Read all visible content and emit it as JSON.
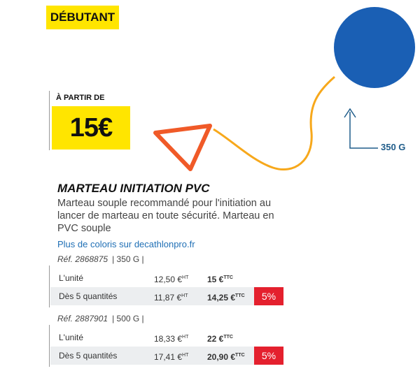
{
  "badge": "DÉBUTANT",
  "price": {
    "label": "À PARTIR DE",
    "amount": "15€"
  },
  "illustration": {
    "weight_label": "350 G"
  },
  "product": {
    "title": "MARTEAU INITIATION PVC",
    "description": "Marteau souple recommandé pour l'initiation au lancer de marteau en toute sécurité. Marteau en PVC souple",
    "link": "Plus de coloris sur decathlonpro.fr"
  },
  "variants": [
    {
      "ref": "Réf. 2868875",
      "spec": "| 350 G |",
      "rows": [
        {
          "label": "L'unité",
          "ht": "12,50 €",
          "ht_unit": "HT",
          "ttc": "15 €",
          "ttc_unit": "TTC"
        },
        {
          "label": "Dès 5 quantités",
          "ht": "11,87 €",
          "ht_unit": "HT",
          "ttc": "14,25 €",
          "ttc_unit": "TTC",
          "discount": "5%"
        }
      ]
    },
    {
      "ref": "Réf. 2887901",
      "spec": "| 500 G |",
      "rows": [
        {
          "label": "L'unité",
          "ht": "18,33 €",
          "ht_unit": "HT",
          "ttc": "22 €",
          "ttc_unit": "TTC"
        },
        {
          "label": "Dès 5 quantités",
          "ht": "17,41 €",
          "ht_unit": "HT",
          "ttc": "20,90 €",
          "ttc_unit": "TTC",
          "discount": "5%"
        }
      ]
    }
  ]
}
